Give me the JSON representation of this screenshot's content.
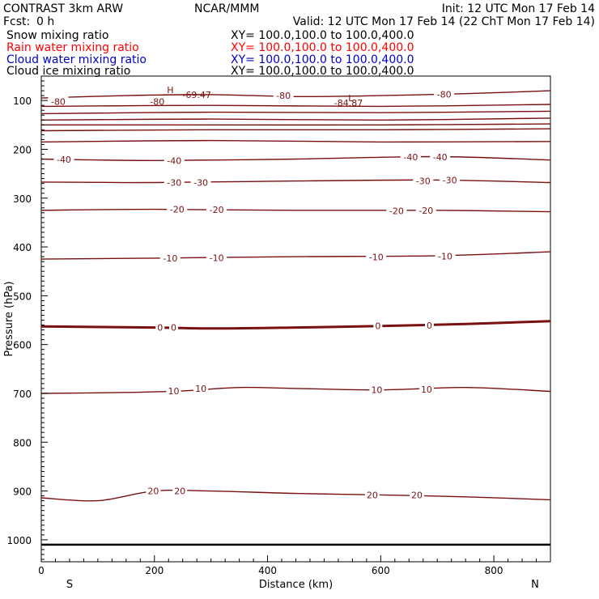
{
  "header": {
    "model": "CONTRAST  3km ARW",
    "center": "NCAR/MMM",
    "init": "Init: 12 UTC Mon 17 Feb 14",
    "fcst_label": "Fcst:",
    "fcst_value": "0 h",
    "valid": "Valid: 12 UTC Mon 17 Feb 14 (22 ChT Mon 17 Feb 14)"
  },
  "legend": [
    {
      "label": "Snow mixing ratio",
      "xy": "XY= 100.0,100.0 to 100.0,400.0",
      "color": "#000000"
    },
    {
      "label": "Rain water mixing ratio",
      "xy": "XY= 100.0,100.0 to 100.0,400.0",
      "color": "#ff0000"
    },
    {
      "label": "Cloud water mixing ratio",
      "xy": "XY= 100.0,100.0 to 100.0,400.0",
      "color": "#0000cc"
    },
    {
      "label": "Cloud ice mixing ratio",
      "xy": "XY= 100.0,100.0 to 100.0,400.0",
      "color": "#000000"
    }
  ],
  "chart_data": {
    "type": "contour",
    "xlabel": "Distance (km)",
    "ylabel": "Pressure (hPa)",
    "xlim": [
      0,
      900
    ],
    "ylim": [
      50,
      1045
    ],
    "xticks": [
      0,
      200,
      400,
      600,
      800
    ],
    "yticks": [
      100,
      200,
      300,
      400,
      500,
      600,
      700,
      800,
      900,
      1000
    ],
    "end_labels": {
      "left": "S",
      "right": "N"
    },
    "contour_color": "#7a1010",
    "ground_pressure": 1010,
    "contours": [
      {
        "level": -80,
        "points": [
          [
            0,
            95
          ],
          [
            150,
            90
          ],
          [
            300,
            88
          ],
          [
            450,
            92
          ],
          [
            600,
            90
          ],
          [
            750,
            86
          ],
          [
            900,
            80
          ]
        ],
        "labels": [
          [
            30,
            102,
            "-80"
          ],
          [
            205,
            102,
            "-80"
          ],
          [
            428,
            90,
            "-80"
          ],
          [
            712,
            87,
            "-80"
          ]
        ]
      },
      {
        "level": null,
        "points": [
          [
            0,
            112
          ],
          [
            300,
            110
          ],
          [
            600,
            112
          ],
          [
            900,
            108
          ]
        ],
        "labels": []
      },
      {
        "level": null,
        "points": [
          [
            0,
            127
          ],
          [
            300,
            124
          ],
          [
            600,
            125
          ],
          [
            900,
            122
          ]
        ],
        "labels": []
      },
      {
        "level": null,
        "points": [
          [
            0,
            140
          ],
          [
            300,
            138
          ],
          [
            600,
            140
          ],
          [
            900,
            136
          ]
        ],
        "labels": []
      },
      {
        "level": null,
        "points": [
          [
            0,
            150
          ],
          [
            300,
            150
          ],
          [
            600,
            150
          ],
          [
            900,
            148
          ]
        ],
        "labels": []
      },
      {
        "level": null,
        "points": [
          [
            0,
            162
          ],
          [
            300,
            160
          ],
          [
            600,
            160
          ],
          [
            900,
            158
          ]
        ],
        "labels": []
      },
      {
        "level": null,
        "points": [
          [
            0,
            185
          ],
          [
            300,
            182
          ],
          [
            600,
            185
          ],
          [
            900,
            184
          ]
        ],
        "labels": []
      },
      {
        "level": -40,
        "points": [
          [
            0,
            220
          ],
          [
            200,
            223
          ],
          [
            450,
            220
          ],
          [
            700,
            215
          ],
          [
            900,
            222
          ]
        ],
        "labels": [
          [
            40,
            221,
            "-40"
          ],
          [
            235,
            223,
            "-40"
          ],
          [
            653,
            216,
            "-40"
          ],
          [
            705,
            216,
            "-40"
          ]
        ]
      },
      {
        "level": -30,
        "points": [
          [
            0,
            267
          ],
          [
            200,
            268
          ],
          [
            450,
            265
          ],
          [
            700,
            263
          ],
          [
            900,
            268
          ]
        ],
        "labels": [
          [
            235,
            268,
            "-30"
          ],
          [
            282,
            268,
            "-30"
          ],
          [
            675,
            265,
            "-30"
          ],
          [
            722,
            263,
            "-30"
          ]
        ]
      },
      {
        "level": -20,
        "points": [
          [
            0,
            325
          ],
          [
            200,
            323
          ],
          [
            450,
            325
          ],
          [
            700,
            325
          ],
          [
            900,
            328
          ]
        ],
        "labels": [
          [
            240,
            323,
            "-20"
          ],
          [
            310,
            324,
            "-20"
          ],
          [
            628,
            326,
            "-20"
          ],
          [
            680,
            325,
            "-20"
          ]
        ]
      },
      {
        "level": -10,
        "points": [
          [
            0,
            425
          ],
          [
            200,
            423
          ],
          [
            450,
            420
          ],
          [
            700,
            418
          ],
          [
            900,
            410
          ]
        ],
        "labels": [
          [
            228,
            423,
            "-10"
          ],
          [
            310,
            422,
            "-10"
          ],
          [
            592,
            421,
            "-10"
          ],
          [
            714,
            419,
            "-10"
          ]
        ]
      },
      {
        "level": 0,
        "points": [
          [
            0,
            563
          ],
          [
            200,
            565
          ],
          [
            300,
            567
          ],
          [
            450,
            565
          ],
          [
            600,
            562
          ],
          [
            750,
            558
          ],
          [
            900,
            552
          ]
        ],
        "labels": [
          [
            210,
            565,
            "0"
          ],
          [
            234,
            565,
            "0"
          ],
          [
            595,
            562,
            "0"
          ],
          [
            686,
            561,
            "0"
          ]
        ]
      },
      {
        "level": 10,
        "points": [
          [
            0,
            700
          ],
          [
            150,
            698
          ],
          [
            250,
            695
          ],
          [
            350,
            688
          ],
          [
            450,
            690
          ],
          [
            600,
            693
          ],
          [
            750,
            688
          ],
          [
            900,
            696
          ]
        ],
        "labels": [
          [
            234,
            695,
            "10"
          ],
          [
            282,
            690,
            "10"
          ],
          [
            593,
            693,
            "10"
          ],
          [
            681,
            692,
            "10"
          ]
        ]
      },
      {
        "level": 20,
        "points": [
          [
            0,
            914
          ],
          [
            100,
            920
          ],
          [
            200,
            900
          ],
          [
            300,
            900
          ],
          [
            450,
            905
          ],
          [
            600,
            908
          ],
          [
            750,
            912
          ],
          [
            900,
            918
          ]
        ],
        "labels": [
          [
            198,
            900,
            "20"
          ],
          [
            245,
            900,
            "20"
          ],
          [
            585,
            908,
            "20"
          ],
          [
            664,
            908,
            "20"
          ]
        ]
      }
    ],
    "annotations": [
      {
        "p": 88,
        "x": 275,
        "text": "-69.47"
      },
      {
        "p": 105,
        "x": 543,
        "text": "-84.87"
      },
      {
        "p": 78,
        "x": 228,
        "text": "H"
      },
      {
        "p": 95,
        "x": 547,
        "text": "L"
      }
    ]
  }
}
